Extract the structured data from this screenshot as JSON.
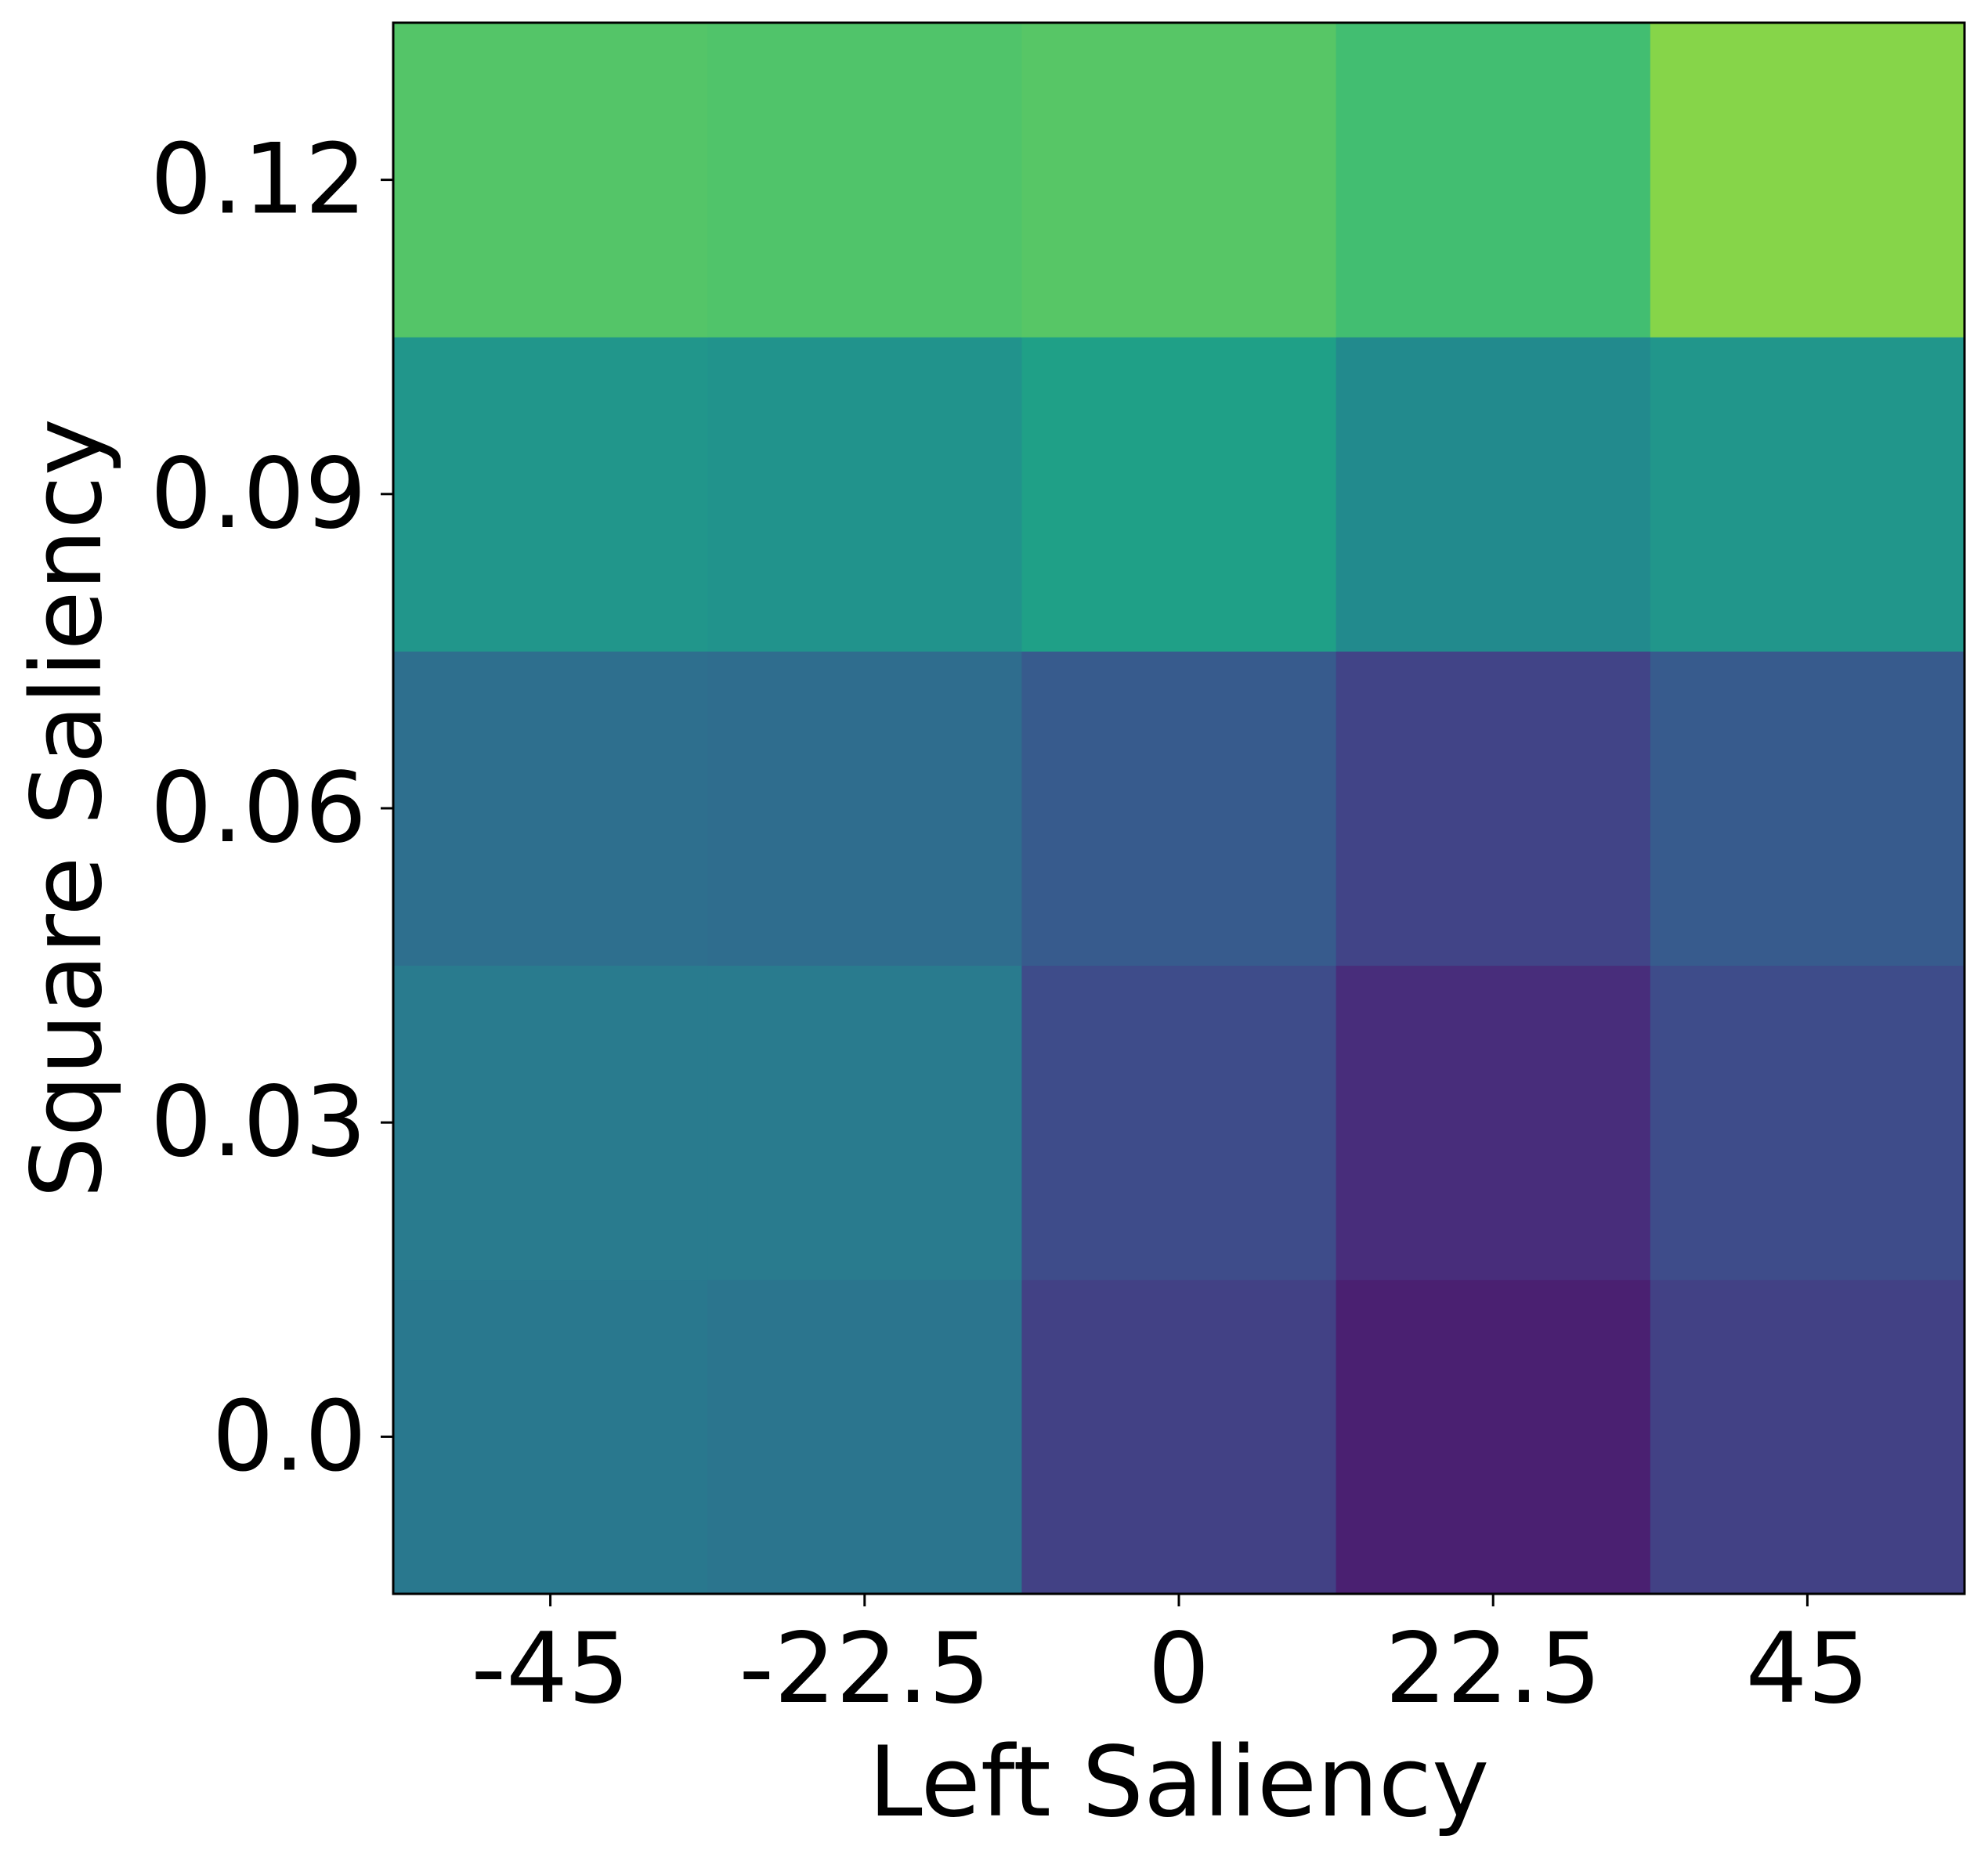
{
  "chart_data": {
    "type": "heatmap",
    "xlabel": "Left Saliency",
    "ylabel": "Square Saliency",
    "x_categories": [
      "-45",
      "-22.5",
      "0",
      "22.5",
      "45"
    ],
    "y_categories": [
      "0.0",
      "0.03",
      "0.06",
      "0.09",
      "0.12"
    ],
    "colormap": "viridis",
    "grid": false,
    "values": [
      [
        0.4,
        0.41,
        0.22,
        0.05,
        0.22
      ],
      [
        0.41,
        0.41,
        0.23,
        0.11,
        0.23
      ],
      [
        0.37,
        0.36,
        0.28,
        0.2,
        0.28
      ],
      [
        0.54,
        0.53,
        0.56,
        0.48,
        0.54
      ],
      [
        0.73,
        0.72,
        0.74,
        0.69,
        0.83
      ]
    ],
    "colors": [
      [
        "#29788e",
        "#2b758e",
        "#424185",
        "#4a2071",
        "#424185"
      ],
      [
        "#297b8e",
        "#297b8e",
        "#3e4c8a",
        "#482d7b",
        "#3e4c8a"
      ],
      [
        "#2e6f8e",
        "#2f6d8e",
        "#375b8d",
        "#414487",
        "#375b8d"
      ],
      [
        "#21968b",
        "#21938c",
        "#1fa087",
        "#228a8d",
        "#21968b"
      ],
      [
        "#54c568",
        "#50c46a",
        "#57c666",
        "#42be71",
        "#86d549"
      ]
    ]
  }
}
